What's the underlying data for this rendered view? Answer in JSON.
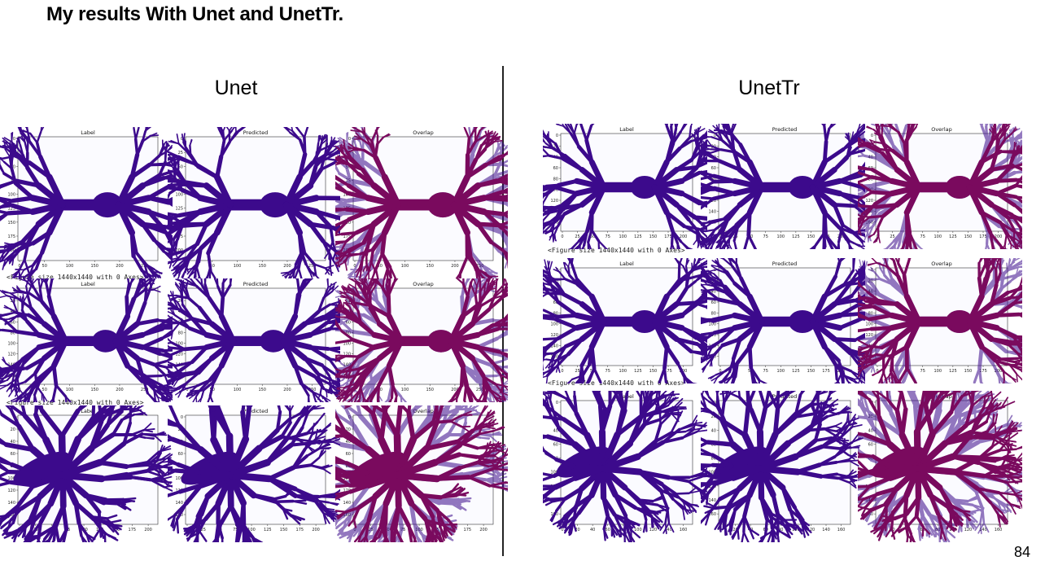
{
  "slide": {
    "title": "My results With Unet and UnetTr.",
    "page_number": "84"
  },
  "columns": {
    "left_title": "Unet",
    "right_title": "UnetTr"
  },
  "figure_caption": "<Figure size 1440x1440 with 0 Axes>",
  "panel_titles": [
    "Label",
    "Predicted",
    "Overlap"
  ],
  "colors": {
    "segmentation": "#3c0a8c",
    "overlap": "#7a0a5e",
    "axes_bg": "#fbfbff"
  },
  "unet": {
    "rows": [
      {
        "yticks": [
          "0",
          "25",
          "50",
          "75",
          "100",
          "125",
          "150",
          "175",
          "200"
        ],
        "xticks": [
          "0",
          "50",
          "100",
          "150",
          "200",
          "250"
        ]
      },
      {
        "yticks": [
          "0",
          "20",
          "40",
          "60",
          "80",
          "100",
          "120",
          "140",
          "160"
        ],
        "xticks": [
          "0",
          "50",
          "100",
          "150",
          "200",
          "250"
        ]
      },
      {
        "yticks": [
          "0",
          "20",
          "40",
          "60",
          "80",
          "100",
          "120",
          "140",
          "160"
        ],
        "xticks": [
          "0",
          "25",
          "50",
          "75",
          "100",
          "125",
          "150",
          "175",
          "200"
        ]
      }
    ]
  },
  "unettr": {
    "rows": [
      {
        "yticks": [
          "0",
          "20",
          "40",
          "60",
          "80",
          "100",
          "120",
          "140",
          "160"
        ],
        "xticks": [
          "0",
          "25",
          "50",
          "75",
          "100",
          "125",
          "150",
          "175",
          "200"
        ]
      },
      {
        "yticks": [
          "0",
          "20",
          "40",
          "60",
          "80",
          "100",
          "120",
          "140",
          "160"
        ],
        "xticks": [
          "0",
          "25",
          "50",
          "75",
          "100",
          "125",
          "150",
          "175",
          "200"
        ]
      },
      {
        "yticks": [
          "0",
          "20",
          "40",
          "60",
          "80",
          "100",
          "120",
          "140",
          "160"
        ],
        "xticks": [
          "0",
          "20",
          "40",
          "60",
          "80",
          "100",
          "120",
          "140",
          "160"
        ]
      }
    ]
  }
}
